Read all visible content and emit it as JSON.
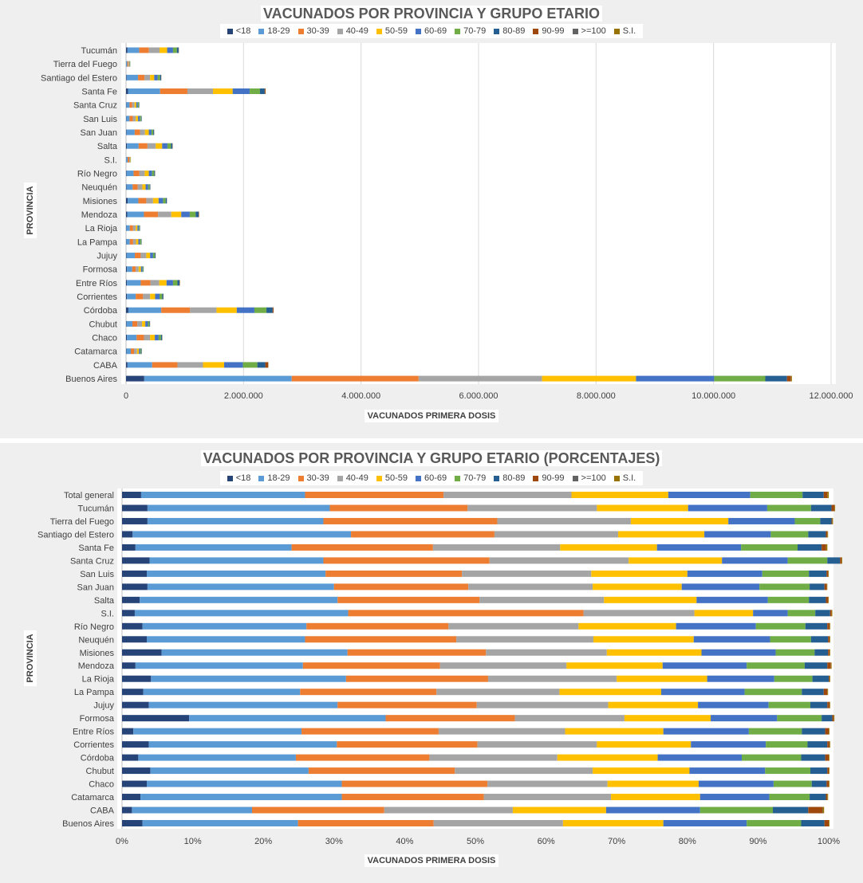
{
  "chart_data": [
    {
      "type": "bar",
      "orientation": "horizontal",
      "stacked": true,
      "title": "VACUNADOS POR PROVINCIA Y GRUPO ETARIO",
      "xlabel": "VACUNADOS PRIMERA  DOSIS",
      "ylabel": "PROVINCIA",
      "xlim": [
        0,
        12000000
      ],
      "xticks": [
        "0",
        "2.000.000",
        "4.000.000",
        "6.000.000",
        "8.000.000",
        "10.000.000",
        "12.000.000"
      ],
      "grid": true,
      "legend_position": "top",
      "categories": [
        "Tucumán",
        "Tierra del Fuego",
        "Santiago del Estero",
        "Santa Fe",
        "Santa Cruz",
        "San Luis",
        "San Juan",
        "Salta",
        "S.I.",
        "Río Negro",
        "Neuquén",
        "Misiones",
        "Mendoza",
        "La Rioja",
        "La Pampa",
        "Jujuy",
        "Formosa",
        "Entre Ríos",
        "Corrientes",
        "Córdoba",
        "Chubut",
        "Chaco",
        "Catamarca",
        "CABA",
        "Buenos Aires"
      ],
      "series": [
        {
          "name": "<18",
          "values": [
            25000,
            3000,
            10000,
            35000,
            5000,
            5000,
            8000,
            15000,
            2000,
            8000,
            8000,
            30000,
            20000,
            5000,
            5000,
            10000,
            15000,
            15000,
            15000,
            40000,
            8000,
            15000,
            6000,
            25000,
            310000
          ]
        },
        {
          "name": "18-29",
          "values": [
            200000,
            18000,
            195000,
            545000,
            55000,
            55000,
            140000,
            200000,
            25000,
            120000,
            105000,
            180000,
            285000,
            60000,
            60000,
            140000,
            90000,
            235000,
            150000,
            560000,
            100000,
            165000,
            75000,
            420000,
            2510000
          ]
        },
        {
          "name": "30-39",
          "values": [
            165000,
            17000,
            110000,
            465000,
            45000,
            55000,
            90000,
            150000,
            28000,
            100000,
            85000,
            135000,
            240000,
            55000,
            55000,
            100000,
            60000,
            165000,
            125000,
            490000,
            85000,
            125000,
            55000,
            430000,
            2160000
          ]
        },
        {
          "name": "40-49",
          "values": [
            180000,
            12000,
            95000,
            435000,
            40000,
            50000,
            85000,
            140000,
            13000,
            90000,
            80000,
            115000,
            225000,
            45000,
            50000,
            95000,
            50000,
            150000,
            120000,
            450000,
            80000,
            105000,
            50000,
            435000,
            2100000
          ]
        },
        {
          "name": "50-59",
          "values": [
            130000,
            10000,
            70000,
            335000,
            30000,
            40000,
            65000,
            110000,
            7000,
            70000,
            55000,
            95000,
            170000,
            30000,
            40000,
            65000,
            40000,
            125000,
            85000,
            345000,
            55000,
            80000,
            35000,
            360000,
            1600000
          ]
        },
        {
          "name": "60-69",
          "values": [
            100000,
            8000,
            60000,
            290000,
            25000,
            30000,
            45000,
            90000,
            3000,
            55000,
            45000,
            75000,
            145000,
            25000,
            30000,
            50000,
            25000,
            110000,
            75000,
            300000,
            45000,
            65000,
            25000,
            320000,
            1330000
          ]
        },
        {
          "name": "70-79",
          "values": [
            65000,
            4000,
            40000,
            175000,
            18000,
            20000,
            30000,
            60000,
            2000,
            35000,
            25000,
            45000,
            100000,
            15000,
            20000,
            30000,
            15000,
            75000,
            45000,
            205000,
            25000,
            40000,
            15000,
            245000,
            870000
          ]
        },
        {
          "name": "80-89",
          "values": [
            30000,
            1000,
            18000,
            80000,
            7000,
            10000,
            15000,
            25000,
            2000,
            15000,
            10000,
            20000,
            50000,
            5000,
            5000,
            12000,
            5000,
            35000,
            20000,
            105000,
            10000,
            20000,
            8000,
            135000,
            370000
          ]
        },
        {
          "name": "90-99",
          "values": [
            4000,
            300,
            2500,
            14000,
            1000,
            1000,
            2000,
            4000,
            200,
            2500,
            1500,
            2000,
            7000,
            500,
            800,
            1500,
            700,
            6000,
            3000,
            15000,
            1500,
            2500,
            1000,
            50000,
            65000
          ]
        },
        {
          "name": ">=100",
          "values": [
            100,
            10,
            100,
            500,
            20,
            30,
            50,
            100,
            10,
            50,
            50,
            50,
            200,
            20,
            30,
            50,
            20,
            150,
            100,
            600,
            50,
            100,
            30,
            1500,
            3000
          ]
        },
        {
          "name": "S.I.",
          "values": [
            500,
            50,
            300,
            2000,
            200,
            300,
            500,
            700,
            20,
            400,
            300,
            300,
            1000,
            200,
            200,
            300,
            100,
            1000,
            500,
            2000,
            200,
            500,
            200,
            2500,
            15000
          ]
        }
      ]
    },
    {
      "type": "bar",
      "orientation": "horizontal",
      "stacked": true,
      "percent": true,
      "title": "VACUNADOS POR PROVINCIA Y GRUPO ETARIO (PORCENTAJES)",
      "xlabel": "VACUNADOS PRIMERA  DOSIS",
      "ylabel": "PROVINCIA",
      "xlim": [
        0,
        100
      ],
      "xticks": [
        "0%",
        "10%",
        "20%",
        "30%",
        "40%",
        "50%",
        "60%",
        "70%",
        "80%",
        "90%",
        "100%"
      ],
      "grid": false,
      "legend_position": "top",
      "categories": [
        "Total general",
        "Tucumán",
        "Tierra del Fuego",
        "Santiago del Estero",
        "Santa Fe",
        "Santa Cruz",
        "San Luis",
        "San Juan",
        "Salta",
        "S.I.",
        "Río Negro",
        "Neuquén",
        "Misiones",
        "Mendoza",
        "La Rioja",
        "La Pampa",
        "Jujuy",
        "Formosa",
        "Entre Ríos",
        "Corrientes",
        "Córdoba",
        "Chubut",
        "Chaco",
        "Catamarca",
        "CABA",
        "Buenos Aires"
      ],
      "series": [
        {
          "name": "<18",
          "values": [
            2.7,
            3.6,
            3.6,
            1.5,
            1.9,
            3.9,
            3.5,
            3.6,
            2.5,
            1.8,
            2.9,
            3.5,
            5.6,
            1.9,
            4.1,
            3.0,
            3.8,
            9.5,
            1.6,
            3.8,
            2.3,
            4.0,
            3.5,
            2.6,
            1.4,
            2.9
          ]
        },
        {
          "name": "18-29",
          "values": [
            23.2,
            25.8,
            24.9,
            30.9,
            22.1,
            24.6,
            25.3,
            26.4,
            28.0,
            30.2,
            23.2,
            22.4,
            26.3,
            23.7,
            27.6,
            22.2,
            26.7,
            27.8,
            23.8,
            26.6,
            22.3,
            22.4,
            27.6,
            28.5,
            17.0,
            22.0
          ]
        },
        {
          "name": "30-39",
          "values": [
            19.6,
            19.5,
            24.6,
            20.3,
            20.0,
            23.5,
            19.3,
            19.0,
            20.1,
            33.3,
            20.1,
            21.4,
            19.6,
            19.4,
            20.1,
            19.3,
            19.7,
            18.3,
            19.4,
            19.9,
            18.9,
            20.7,
            20.6,
            20.1,
            18.7,
            19.2
          ]
        },
        {
          "name": "40-49",
          "values": [
            18.1,
            18.3,
            18.9,
            17.5,
            18.0,
            19.7,
            18.3,
            17.6,
            17.6,
            15.7,
            18.4,
            19.4,
            17.1,
            17.9,
            18.2,
            17.4,
            18.6,
            15.5,
            17.9,
            16.9,
            18.1,
            19.5,
            17.0,
            18.0,
            18.2,
            18.3
          ]
        },
        {
          "name": "50-59",
          "values": [
            13.7,
            12.9,
            13.8,
            12.2,
            13.7,
            13.2,
            13.6,
            12.6,
            13.1,
            8.3,
            13.8,
            14.2,
            13.4,
            13.6,
            12.8,
            14.4,
            12.7,
            12.2,
            13.9,
            13.3,
            14.2,
            13.7,
            12.9,
            12.6,
            13.2,
            14.2
          ]
        },
        {
          "name": "60-69",
          "values": [
            11.6,
            11.2,
            9.4,
            9.4,
            11.9,
            9.3,
            10.6,
            11.0,
            10.1,
            4.9,
            11.3,
            10.8,
            10.5,
            11.9,
            9.5,
            11.8,
            10.0,
            9.4,
            12.1,
            10.6,
            11.9,
            10.7,
            10.6,
            9.8,
            13.3,
            11.8
          ]
        },
        {
          "name": "70-79",
          "values": [
            7.4,
            6.2,
            3.6,
            5.3,
            8.0,
            5.6,
            6.6,
            7.1,
            5.8,
            3.9,
            7.0,
            5.8,
            5.5,
            8.2,
            5.4,
            8.1,
            5.9,
            6.3,
            7.5,
            5.9,
            8.4,
            6.4,
            5.4,
            5.7,
            10.3,
            7.7
          ]
        },
        {
          "name": "80-89",
          "values": [
            3.0,
            2.9,
            1.6,
            2.5,
            3.4,
            1.8,
            2.5,
            2.1,
            2.4,
            2.1,
            3.1,
            2.4,
            1.9,
            3.2,
            2.3,
            3.1,
            2.4,
            1.5,
            3.3,
            2.8,
            3.4,
            2.4,
            2.1,
            2.3,
            5.0,
            3.3
          ]
        },
        {
          "name": "90-99",
          "values": [
            0.5,
            0.4,
            0.1,
            0.2,
            0.6,
            0.2,
            0.2,
            0.3,
            0.3,
            0.2,
            0.3,
            0.2,
            0.2,
            0.5,
            0.1,
            0.5,
            0.3,
            0.2,
            0.5,
            0.3,
            0.5,
            0.2,
            0.3,
            0.2,
            2.0,
            0.6
          ]
        },
        {
          "name": ">=100",
          "values": [
            0.01,
            0.01,
            0.01,
            0.01,
            0.01,
            0.01,
            0.01,
            0.01,
            0.01,
            0.01,
            0.01,
            0.01,
            0.01,
            0.01,
            0.01,
            0.01,
            0.01,
            0.01,
            0.01,
            0.01,
            0.01,
            0.01,
            0.01,
            0.01,
            0.05,
            0.01
          ]
        },
        {
          "name": "S.I.",
          "values": [
            0.2,
            0.1,
            0.1,
            0.1,
            0.2,
            0.1,
            0.1,
            0.1,
            0.1,
            0.1,
            0.1,
            0.1,
            0.1,
            0.1,
            0.1,
            0.1,
            0.1,
            0.1,
            0.1,
            0.1,
            0.1,
            0.1,
            0.1,
            0.1,
            0.2,
            0.1
          ]
        }
      ]
    }
  ],
  "colors": {
    "<18": "#264478",
    "18-29": "#5b9bd5",
    "30-39": "#ed7d31",
    "40-49": "#a5a5a5",
    "50-59": "#ffc000",
    "60-69": "#4472c4",
    "70-79": "#70ad47",
    "80-89": "#255e91",
    "90-99": "#9e480e",
    ">=100": "#636363",
    "S.I.": "#997300"
  }
}
